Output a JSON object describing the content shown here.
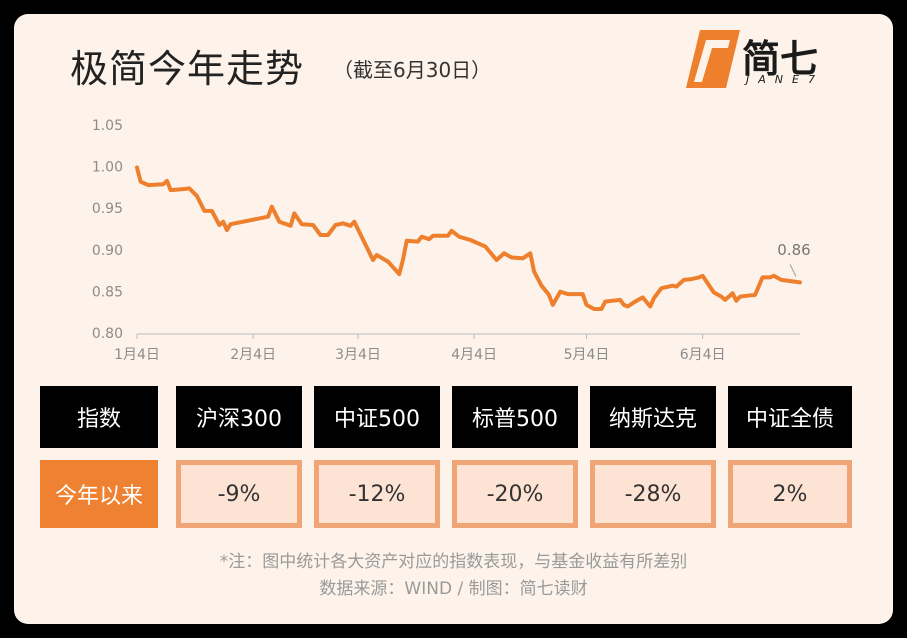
{
  "header": {
    "title": "极简今年走势",
    "subtitle": "（截至6月30日）",
    "logo": "简七",
    "logo_sub": "JANE7"
  },
  "chart_data": {
    "type": "line",
    "color": "#ee7f2d",
    "x": [
      4,
      5,
      7,
      11,
      12,
      13,
      16,
      18,
      20,
      22,
      24,
      26,
      27,
      28,
      29,
      39,
      40,
      42,
      45,
      46,
      48,
      51,
      53,
      55,
      57,
      59,
      61,
      62,
      67,
      68,
      71,
      74,
      75,
      76,
      79,
      80,
      82,
      83,
      85,
      87,
      88,
      90,
      93,
      97,
      100,
      102,
      104,
      107,
      109,
      110,
      112,
      114,
      115,
      117,
      119,
      123,
      124,
      126,
      128,
      129,
      131,
      133,
      134,
      135,
      137,
      139,
      141,
      142,
      144,
      147,
      148,
      150,
      152,
      154,
      155,
      158,
      160,
      161,
      163,
      164,
      165,
      167,
      169,
      171,
      173,
      174,
      176,
      181
    ],
    "values": [
      1.0,
      0.983,
      0.979,
      0.98,
      0.984,
      0.973,
      0.974,
      0.975,
      0.966,
      0.948,
      0.948,
      0.931,
      0.935,
      0.925,
      0.932,
      0.941,
      0.953,
      0.935,
      0.93,
      0.945,
      0.932,
      0.931,
      0.919,
      0.919,
      0.931,
      0.933,
      0.93,
      0.935,
      0.889,
      0.895,
      0.887,
      0.872,
      0.889,
      0.912,
      0.911,
      0.917,
      0.914,
      0.918,
      0.918,
      0.918,
      0.924,
      0.917,
      0.913,
      0.905,
      0.889,
      0.897,
      0.892,
      0.891,
      0.897,
      0.875,
      0.858,
      0.847,
      0.835,
      0.851,
      0.848,
      0.848,
      0.835,
      0.83,
      0.83,
      0.839,
      0.84,
      0.841,
      0.835,
      0.833,
      0.839,
      0.844,
      0.833,
      0.843,
      0.855,
      0.858,
      0.857,
      0.865,
      0.866,
      0.868,
      0.87,
      0.85,
      0.845,
      0.841,
      0.849,
      0.84,
      0.845,
      0.846,
      0.847,
      0.868,
      0.868,
      0.87,
      0.865,
      0.862
    ],
    "value_labels": [
      null,
      null,
      null,
      null,
      null,
      null,
      null,
      null,
      null,
      null,
      null,
      null,
      null,
      null,
      null,
      null,
      null,
      null,
      null,
      null,
      null,
      null,
      null,
      null,
      null,
      null,
      null,
      null,
      null,
      null,
      null,
      null,
      null,
      null,
      null,
      null,
      null,
      null,
      null,
      null,
      null,
      null,
      null,
      null,
      null,
      null,
      null,
      null,
      null,
      null,
      null,
      null,
      null,
      null,
      null,
      null,
      null,
      null,
      null,
      null,
      null,
      null,
      null,
      null,
      null,
      null,
      null,
      null,
      null,
      null,
      null,
      null,
      null,
      null,
      null,
      null,
      null,
      null,
      null,
      null,
      null,
      null,
      null,
      null,
      null,
      null,
      null,
      "0.86"
    ],
    "xlim": [
      4,
      181
    ],
    "xticks": [
      {
        "value": 4,
        "label": "1月4日"
      },
      {
        "value": 35,
        "label": "2月4日"
      },
      {
        "value": 63,
        "label": "3月4日"
      },
      {
        "value": 94,
        "label": "4月4日"
      },
      {
        "value": 124,
        "label": "5月4日"
      },
      {
        "value": 155,
        "label": "6月4日"
      }
    ],
    "ylim": [
      0.8,
      1.05
    ],
    "yticks": [
      {
        "value": 0.8,
        "label": "0.80"
      },
      {
        "value": 0.85,
        "label": "0.85"
      },
      {
        "value": 0.9,
        "label": "0.90"
      },
      {
        "value": 0.95,
        "label": "0.95"
      },
      {
        "value": 1.0,
        "label": "1.00"
      },
      {
        "value": 1.05,
        "label": "1.05"
      }
    ],
    "grid": false
  },
  "table": {
    "header": [
      "指数",
      "沪深300",
      "中证500",
      "标普500",
      "纳斯达克",
      "中证全债"
    ],
    "rows": [
      [
        "今年以来",
        "-9%",
        "-12%",
        "-20%",
        "-28%",
        "2%"
      ]
    ]
  },
  "footer": {
    "note": "*注：图中统计各大资产对应的指数表现，与基金收益有所差别",
    "source": "数据来源：WIND / 制图：简七读财"
  }
}
